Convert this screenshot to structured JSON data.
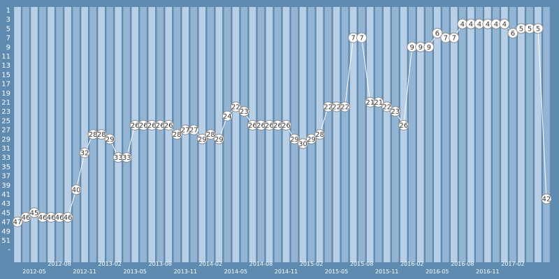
{
  "chart_data": {
    "type": "line",
    "title": "",
    "xlabel": "",
    "ylabel": "",
    "y_axis_inverted": true,
    "ylim": [
      53,
      1
    ],
    "y_ticks": [
      "1",
      "3",
      "5",
      "7",
      "9",
      "11",
      "13",
      "15",
      "17",
      "19",
      "21",
      "23",
      "25",
      "27",
      "29",
      "31",
      "33",
      "35",
      "37",
      "39",
      "41",
      "43",
      "45",
      "47",
      "49",
      "51",
      "-"
    ],
    "x_ticks": [
      {
        "label": "2012-05",
        "index": 2,
        "row": 2
      },
      {
        "label": "2012-08",
        "index": 5,
        "row": 1
      },
      {
        "label": "2012-11",
        "index": 8,
        "row": 2
      },
      {
        "label": "2013-02",
        "index": 11,
        "row": 1
      },
      {
        "label": "2013-05",
        "index": 14,
        "row": 2
      },
      {
        "label": "2013-08",
        "index": 17,
        "row": 1
      },
      {
        "label": "2013-11",
        "index": 20,
        "row": 2
      },
      {
        "label": "2014-02",
        "index": 23,
        "row": 1
      },
      {
        "label": "2014-05",
        "index": 26,
        "row": 2
      },
      {
        "label": "2014-08",
        "index": 29,
        "row": 1
      },
      {
        "label": "2014-11",
        "index": 32,
        "row": 2
      },
      {
        "label": "2015-02",
        "index": 35,
        "row": 1
      },
      {
        "label": "2015-05",
        "index": 38,
        "row": 2
      },
      {
        "label": "2015-08",
        "index": 41,
        "row": 1
      },
      {
        "label": "2015-11",
        "index": 44,
        "row": 2
      },
      {
        "label": "2016-02",
        "index": 47,
        "row": 1
      },
      {
        "label": "2016-05",
        "index": 50,
        "row": 2
      },
      {
        "label": "2016-08",
        "index": 53,
        "row": 1
      },
      {
        "label": "2016-11",
        "index": 56,
        "row": 2
      },
      {
        "label": "2017-02",
        "index": 59,
        "row": 1
      }
    ],
    "values": [
      47,
      46,
      45,
      46,
      46,
      46,
      46,
      40,
      32,
      28,
      28,
      29,
      33,
      33,
      26,
      26,
      26,
      26,
      26,
      28,
      27,
      27,
      29,
      28,
      29,
      24,
      22,
      23,
      26,
      26,
      26,
      26,
      26,
      29,
      30,
      29,
      28,
      22,
      22,
      22,
      7,
      7,
      21,
      21,
      22,
      23,
      26,
      9,
      9,
      9,
      6,
      7,
      7,
      4,
      4,
      4,
      4,
      4,
      4,
      6,
      5,
      5,
      5,
      42
    ],
    "grid": true,
    "legend": "none",
    "colors": {
      "background": "#5f8bb0",
      "stripe_light": "#b8cfe6",
      "stripe_mid": "#93b4d3",
      "line": "#ffffff",
      "point_fill": "#ffffff",
      "point_stroke": "#8a8a8a",
      "label_text": "#333333",
      "tick_text": "#ffffff"
    }
  }
}
